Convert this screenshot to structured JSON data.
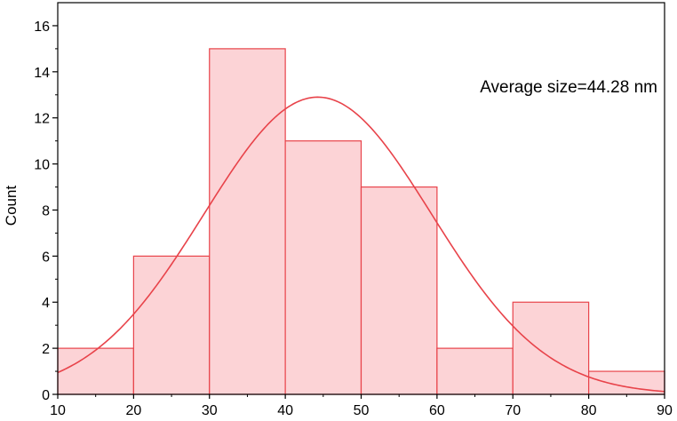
{
  "chart_data": {
    "type": "bar",
    "subtype": "histogram",
    "bins": [
      {
        "x0": 10,
        "x1": 20,
        "count": 2
      },
      {
        "x0": 20,
        "x1": 30,
        "count": 6
      },
      {
        "x0": 30,
        "x1": 40,
        "count": 15
      },
      {
        "x0": 40,
        "x1": 50,
        "count": 11
      },
      {
        "x0": 50,
        "x1": 60,
        "count": 9
      },
      {
        "x0": 60,
        "x1": 70,
        "count": 2
      },
      {
        "x0": 70,
        "x1": 80,
        "count": 4
      },
      {
        "x0": 80,
        "x1": 90,
        "count": 1
      }
    ],
    "fit_curve": {
      "type": "gaussian",
      "mean": 44.28,
      "sigma": 15.0,
      "peak": 12.9,
      "color": "#e8434a"
    },
    "title": "",
    "xlabel": "",
    "ylabel": "Count",
    "xlim": [
      10,
      90
    ],
    "ylim": [
      0,
      17
    ],
    "xticks": [
      10,
      20,
      30,
      40,
      50,
      60,
      70,
      80,
      90
    ],
    "yticks": [
      0,
      2,
      4,
      6,
      8,
      10,
      12,
      14,
      16
    ],
    "annotation": "Average size=44.28 nm",
    "annotation_placement": "top-right",
    "grid": false,
    "legend": "none",
    "colors": {
      "bar_fill": "#fcd3d6",
      "bar_stroke": "#e8434a",
      "curve": "#e8434a",
      "axis": "#000000"
    }
  }
}
